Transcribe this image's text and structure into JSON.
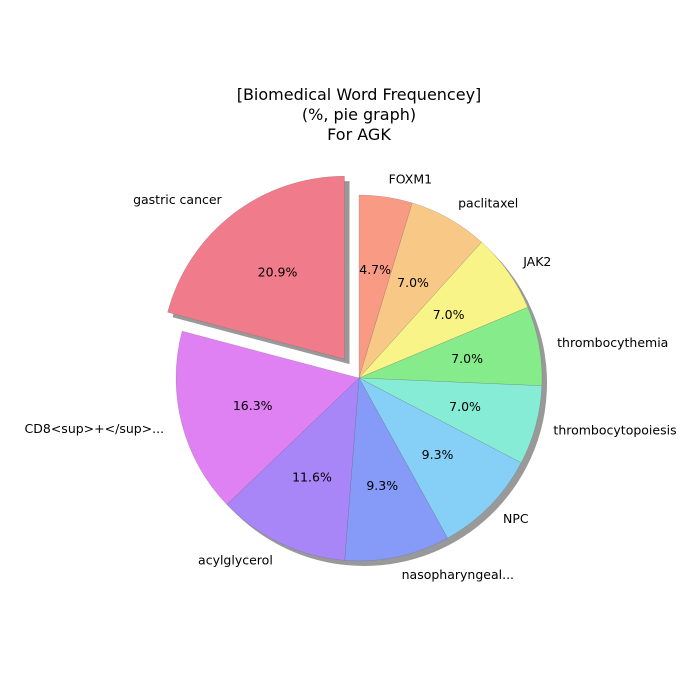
{
  "chart_data": {
    "type": "pie",
    "title": [
      "[Biomedical Word Frequencey]",
      "(%, pie graph)",
      "For AGK"
    ],
    "slices": [
      {
        "label": "FOXM1",
        "value": 4.7,
        "pct_label": "4.7%",
        "color": "#f99a85",
        "exploded": false
      },
      {
        "label": "paclitaxel",
        "value": 7.0,
        "pct_label": "7.0%",
        "color": "#f8c886",
        "exploded": false
      },
      {
        "label": "JAK2",
        "value": 7.0,
        "pct_label": "7.0%",
        "color": "#f8f487",
        "exploded": false
      },
      {
        "label": "thrombocythemia",
        "value": 7.0,
        "pct_label": "7.0%",
        "color": "#86eb8b",
        "exploded": false
      },
      {
        "label": "thrombocytopoiesis",
        "value": 7.0,
        "pct_label": "7.0%",
        "color": "#86ecd6",
        "exploded": false
      },
      {
        "label": "NPC",
        "value": 9.3,
        "pct_label": "9.3%",
        "color": "#86cff7",
        "exploded": false
      },
      {
        "label": "nasopharyngeal...",
        "value": 9.3,
        "pct_label": "9.3%",
        "color": "#869af7",
        "exploded": false
      },
      {
        "label": "acylglycerol",
        "value": 11.6,
        "pct_label": "11.6%",
        "color": "#a986f7",
        "exploded": false
      },
      {
        "label": "CD8<sup>+</sup>...",
        "value": 16.3,
        "pct_label": "16.3%",
        "color": "#df80f3",
        "exploded": false
      },
      {
        "label": "gastric cancer",
        "value": 20.9,
        "pct_label": "20.9%",
        "color": "#f07b8a",
        "exploded": true
      }
    ],
    "start_angle_deg": 90,
    "direction": "clockwise",
    "shadow": true
  }
}
